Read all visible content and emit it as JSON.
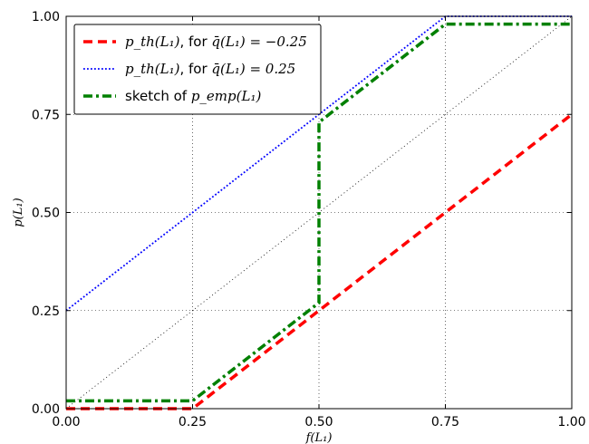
{
  "chart_data": {
    "type": "line",
    "xlabel": "f(L₁)",
    "ylabel": "p(L₁)",
    "xlim": [
      0,
      1
    ],
    "ylim": [
      0,
      1
    ],
    "x_ticks": [
      "0.00",
      "0.25",
      "0.50",
      "0.75",
      "1.00"
    ],
    "y_ticks": [
      "0.00",
      "0.25",
      "0.50",
      "0.75",
      "1.00"
    ],
    "grid": true,
    "legend_position": "top-left",
    "series": [
      {
        "name_math": "p_th(L₁)",
        "name_text": ", for ",
        "name_cond": "q̄(L₁) = −0.25",
        "style": "dashed",
        "color": "#ff0000",
        "points": [
          [
            0.0,
            0.0
          ],
          [
            0.25,
            0.0
          ],
          [
            1.0,
            0.75
          ]
        ]
      },
      {
        "name_math": "p_th(L₁)",
        "name_text": ", for ",
        "name_cond": "q̄(L₁) = 0.25",
        "style": "dotted",
        "color": "#0000ff",
        "points": [
          [
            0.0,
            0.25
          ],
          [
            0.75,
            1.0
          ],
          [
            1.0,
            1.0
          ]
        ]
      },
      {
        "name_text": "sketch of ",
        "name_math": "p_emp(L₁)",
        "style": "dashdot",
        "color": "#008000",
        "points": [
          [
            0.0,
            0.02
          ],
          [
            0.25,
            0.02
          ],
          [
            0.5,
            0.27
          ],
          [
            0.5,
            0.73
          ],
          [
            0.75,
            0.98
          ],
          [
            1.0,
            0.98
          ]
        ]
      }
    ],
    "reference_line": {
      "style": "dotted",
      "color": "#000000",
      "points": [
        [
          0,
          0
        ],
        [
          1,
          1
        ]
      ]
    }
  }
}
